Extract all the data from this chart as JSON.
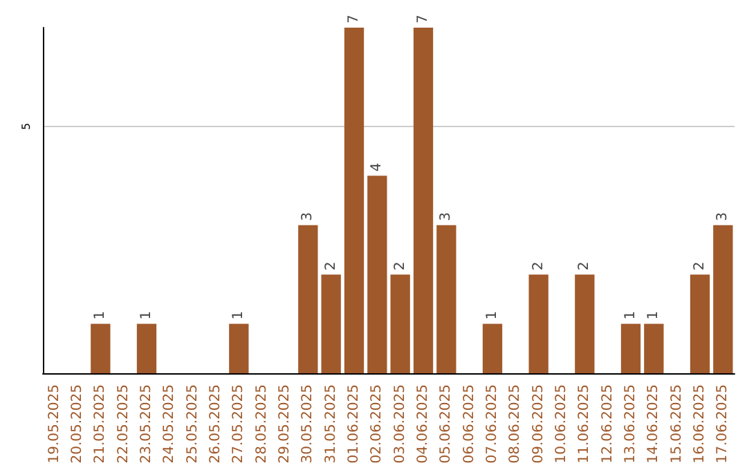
{
  "chart_data": {
    "type": "bar",
    "categories": [
      "19.05.2025",
      "20.05.2025",
      "21.05.2025",
      "22.05.2025",
      "23.05.2025",
      "24.05.2025",
      "25.05.2025",
      "26.05.2025",
      "27.05.2025",
      "28.05.2025",
      "29.05.2025",
      "30.05.2025",
      "31.05.2025",
      "01.06.2025",
      "02.06.2025",
      "03.06.2025",
      "04.06.2025",
      "05.06.2025",
      "06.06.2025",
      "07.06.2025",
      "08.06.2025",
      "09.06.2025",
      "10.06.2025",
      "11.06.2025",
      "12.06.2025",
      "13.06.2025",
      "14.06.2025",
      "15.06.2025",
      "16.06.2025",
      "17.06.2025"
    ],
    "values": [
      0,
      0,
      1,
      0,
      1,
      0,
      0,
      0,
      1,
      0,
      0,
      3,
      2,
      7,
      4,
      2,
      7,
      3,
      0,
      1,
      0,
      2,
      0,
      2,
      0,
      1,
      1,
      0,
      2,
      3
    ],
    "color": "#a0592b",
    "value_labels": [
      null,
      null,
      "1",
      null,
      "1",
      null,
      null,
      null,
      "1",
      null,
      null,
      "3",
      "2",
      "7",
      "4",
      "2",
      "7",
      "3",
      null,
      "1",
      null,
      "2",
      null,
      "2",
      null,
      "1",
      "1",
      null,
      "2",
      "3"
    ],
    "ylim": [
      0,
      7
    ],
    "yticks": [
      5
    ],
    "grid": "y"
  }
}
